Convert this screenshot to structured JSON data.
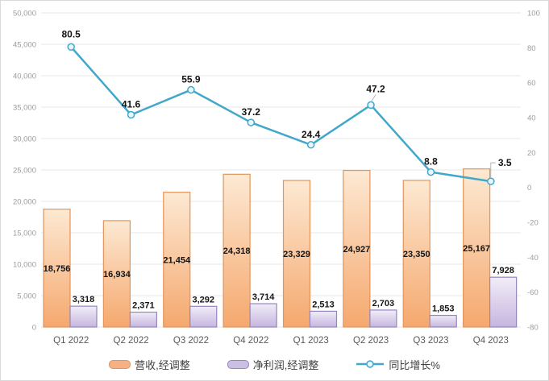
{
  "chart_data": {
    "type": "combo-bar-line",
    "categories": [
      "Q1 2022",
      "Q2 2022",
      "Q3 2022",
      "Q4 2022",
      "Q1 2023",
      "Q2 2023",
      "Q3 2023",
      "Q4 2023"
    ],
    "series": [
      {
        "name": "营收,经调整",
        "type": "bar",
        "axis": "left",
        "values": [
          18756,
          16934,
          21454,
          24318,
          23329,
          24927,
          23350,
          25167
        ],
        "labels": [
          "18,756",
          "16,934",
          "21,454",
          "24,318",
          "23,329",
          "24,927",
          "23,350",
          "25,167"
        ],
        "label_position": "inside-center"
      },
      {
        "name": "净利润,经调整",
        "type": "bar",
        "axis": "left",
        "values": [
          3318,
          2371,
          3292,
          3714,
          2513,
          2703,
          1853,
          7928
        ],
        "labels": [
          "3,318",
          "2,371",
          "3,292",
          "3,714",
          "2,513",
          "2,703",
          "1,853",
          "7,928"
        ],
        "label_position": "outside-top"
      },
      {
        "name": "同比增长%",
        "type": "line",
        "axis": "right",
        "values": [
          80.5,
          41.6,
          55.9,
          37.2,
          24.4,
          47.2,
          8.8,
          3.5
        ],
        "labels": [
          "80.5",
          "41.6",
          "55.9",
          "37.2",
          "24.4",
          "47.2",
          "8.8",
          "3.5"
        ],
        "label_position": "above-point"
      }
    ],
    "left_axis": {
      "min": 0,
      "max": 50000,
      "step": 5000,
      "tick_labels_top_to_bottom": [
        "50,000",
        "45,000",
        "40,000",
        "35,000",
        "30,000",
        "25,000",
        "20,000",
        "15,000",
        "10,000",
        "5,000",
        "0"
      ]
    },
    "right_axis": {
      "min": -80,
      "max": 100,
      "step": 20,
      "tick_labels_top_to_bottom": [
        "100",
        "80",
        "60",
        "40",
        "20",
        "0",
        "-20",
        "-40",
        "-60",
        "-80"
      ]
    },
    "grid": true,
    "legend_position": "bottom",
    "title": ""
  },
  "colors": {
    "orange_fill_top": "#FDE9D3",
    "orange_fill_bottom": "#F5A86E",
    "orange_border": "#E3945C",
    "orange_solid": "#F5B183",
    "purple_fill_top": "#F1EDF8",
    "purple_fill_bottom": "#C6B6DF",
    "purple_border": "#9686BF",
    "purple_solid": "#CCBFE4",
    "line": "#41A7CB",
    "marker_fill": "#E9F6FB",
    "grid_line": "#E7E7E7",
    "axis_text": "#9C9C9C",
    "category_text": "#595959",
    "leader_line": "#A6A6A6",
    "chart_border": "#D9D9D9"
  }
}
